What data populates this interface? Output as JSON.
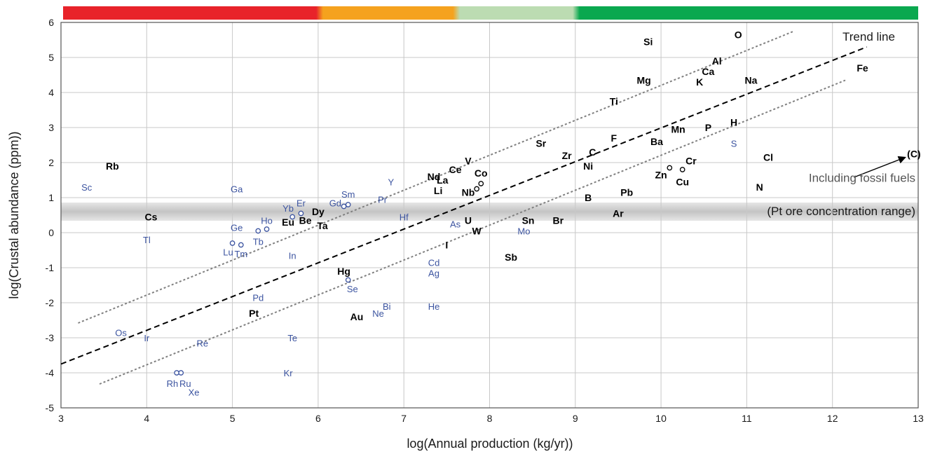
{
  "chart_data": {
    "type": "scatter",
    "title": "",
    "xlabel": "log(Annual production (kg/yr))",
    "ylabel": "log(Crustal abundance (ppm))",
    "xlim": [
      3,
      13
    ],
    "ylim": [
      -5,
      6
    ],
    "x_ticks": [
      "3",
      "4",
      "5",
      "6",
      "7",
      "8",
      "9",
      "10",
      "11",
      "12",
      "13"
    ],
    "y_ticks": [
      "-5",
      "-4",
      "-3",
      "-2",
      "-1",
      "0",
      "1",
      "2",
      "3",
      "4",
      "5",
      "6"
    ],
    "grid": true,
    "colors": {
      "major_label": "#000000",
      "minor_label": "#3c54a0",
      "grid": "#c8c8c8",
      "band": "#c4c4c4",
      "scale_red": "#e8232a",
      "scale_orange": "#f5a21e",
      "scale_lightgreen": "#bcdcb2",
      "scale_green": "#0aa84f",
      "dotted_lines": "#808080",
      "trend_line": "#000000"
    },
    "color_scale": {
      "segments": [
        {
          "from": 3,
          "to": 6,
          "color": "#e8232a"
        },
        {
          "from": 6,
          "to": 7.6,
          "color": "#f5a21e"
        },
        {
          "from": 7.6,
          "to": 9,
          "color": "#bcdcb2"
        },
        {
          "from": 9,
          "to": 13,
          "color": "#0aa84f"
        }
      ]
    },
    "band": {
      "y_range": [
        0.42,
        0.78
      ],
      "label": "(Pt ore concentration range)"
    },
    "trend_line": {
      "label": "Trend line",
      "points": [
        [
          3,
          -3.75
        ],
        [
          12.4,
          5.3
        ]
      ]
    },
    "dotted_lines": [
      {
        "points": [
          [
            3.2,
            -2.58
          ],
          [
            11.55,
            5.75
          ]
        ]
      },
      {
        "points": [
          [
            3.45,
            -4.32
          ],
          [
            12.15,
            4.35
          ]
        ]
      }
    ],
    "annotation": {
      "text": "Including fossil fuels",
      "arrow_from": [
        12.25,
        1.58
      ],
      "arrow_to": [
        12.85,
        2.15
      ]
    },
    "series": [
      {
        "name": "",
        "style": "major",
        "points": [
          {
            "label": "O",
            "x": 10.9,
            "y": 5.65
          },
          {
            "label": "Si",
            "x": 9.85,
            "y": 5.45
          },
          {
            "label": "Al",
            "x": 10.65,
            "y": 4.9
          },
          {
            "label": "Ca",
            "x": 10.55,
            "y": 4.6
          },
          {
            "label": "K",
            "x": 10.45,
            "y": 4.3
          },
          {
            "label": "Fe",
            "x": 12.35,
            "y": 4.7
          },
          {
            "label": "Mg",
            "x": 9.8,
            "y": 4.35
          },
          {
            "label": "Na",
            "x": 11.05,
            "y": 4.35
          },
          {
            "label": "Ti",
            "x": 9.45,
            "y": 3.75
          },
          {
            "label": "Mn",
            "x": 10.2,
            "y": 2.95
          },
          {
            "label": "P",
            "x": 10.55,
            "y": 3.0
          },
          {
            "label": "H",
            "x": 10.85,
            "y": 3.15
          },
          {
            "label": "F",
            "x": 9.45,
            "y": 2.7
          },
          {
            "label": "Ba",
            "x": 9.95,
            "y": 2.6
          },
          {
            "label": "Sr",
            "x": 8.6,
            "y": 2.55
          },
          {
            "label": "Zr",
            "x": 8.9,
            "y": 2.2
          },
          {
            "label": "C",
            "x": 9.2,
            "y": 2.3
          },
          {
            "label": "Ni",
            "x": 9.15,
            "y": 1.9
          },
          {
            "label": "Cr",
            "x": 10.35,
            "y": 2.05
          },
          {
            "label": "Zn",
            "x": 10.0,
            "y": 1.65
          },
          {
            "label": "Cu",
            "x": 10.25,
            "y": 1.45
          },
          {
            "label": "Cl",
            "x": 11.25,
            "y": 2.15
          },
          {
            "label": "(C)",
            "x": 12.95,
            "y": 2.25
          },
          {
            "label": "V",
            "x": 7.75,
            "y": 2.05
          },
          {
            "label": "Ce",
            "x": 7.6,
            "y": 1.8
          },
          {
            "label": "Co",
            "x": 7.9,
            "y": 1.7
          },
          {
            "label": "Nd",
            "x": 7.35,
            "y": 1.6
          },
          {
            "label": "La",
            "x": 7.45,
            "y": 1.5
          },
          {
            "label": "Li",
            "x": 7.4,
            "y": 1.2
          },
          {
            "label": "Nb",
            "x": 7.75,
            "y": 1.15
          },
          {
            "label": "N",
            "x": 11.15,
            "y": 1.3
          },
          {
            "label": "B",
            "x": 9.15,
            "y": 1.0
          },
          {
            "label": "Pb",
            "x": 9.6,
            "y": 1.15
          },
          {
            "label": "Rb",
            "x": 3.6,
            "y": 1.9
          },
          {
            "label": "Cs",
            "x": 4.05,
            "y": 0.45
          },
          {
            "label": "Dy",
            "x": 6.0,
            "y": 0.6
          },
          {
            "label": "Be",
            "x": 5.85,
            "y": 0.35
          },
          {
            "label": "Eu",
            "x": 5.65,
            "y": 0.3
          },
          {
            "label": "Ta",
            "x": 6.05,
            "y": 0.2
          },
          {
            "label": "U",
            "x": 7.75,
            "y": 0.35
          },
          {
            "label": "W",
            "x": 7.85,
            "y": 0.05
          },
          {
            "label": "Sn",
            "x": 8.45,
            "y": 0.35
          },
          {
            "label": "Br",
            "x": 8.8,
            "y": 0.35
          },
          {
            "label": "Ar",
            "x": 9.5,
            "y": 0.55
          },
          {
            "label": "I",
            "x": 7.5,
            "y": -0.35
          },
          {
            "label": "Sb",
            "x": 8.25,
            "y": -0.7
          },
          {
            "label": "Hg",
            "x": 6.3,
            "y": -1.1
          },
          {
            "label": "Pt",
            "x": 5.25,
            "y": -2.3
          },
          {
            "label": "Au",
            "x": 6.45,
            "y": -2.4
          }
        ]
      },
      {
        "name": "",
        "style": "minor",
        "points": [
          {
            "label": "Sc",
            "x": 3.3,
            "y": 1.3
          },
          {
            "label": "Ga",
            "x": 5.05,
            "y": 1.25
          },
          {
            "label": "Y",
            "x": 6.85,
            "y": 1.45
          },
          {
            "label": "Sm",
            "x": 6.35,
            "y": 1.1
          },
          {
            "label": "Gd",
            "x": 6.2,
            "y": 0.85
          },
          {
            "label": "Pr",
            "x": 6.75,
            "y": 0.95
          },
          {
            "label": "Er",
            "x": 5.8,
            "y": 0.85
          },
          {
            "label": "Yb",
            "x": 5.65,
            "y": 0.7
          },
          {
            "label": "Ho",
            "x": 5.4,
            "y": 0.35
          },
          {
            "label": "Hf",
            "x": 7.0,
            "y": 0.45
          },
          {
            "label": "As",
            "x": 7.6,
            "y": 0.25
          },
          {
            "label": "Mo",
            "x": 8.4,
            "y": 0.05
          },
          {
            "label": "Ge",
            "x": 5.05,
            "y": 0.15
          },
          {
            "label": "Tl",
            "x": 4.0,
            "y": -0.2
          },
          {
            "label": "Tb",
            "x": 5.3,
            "y": -0.25
          },
          {
            "label": "Lu",
            "x": 4.95,
            "y": -0.55
          },
          {
            "label": "Tm",
            "x": 5.1,
            "y": -0.6
          },
          {
            "label": "In",
            "x": 5.7,
            "y": -0.65
          },
          {
            "label": "S",
            "x": 10.85,
            "y": 2.55
          },
          {
            "label": "Cd",
            "x": 7.35,
            "y": -0.85
          },
          {
            "label": "Ag",
            "x": 7.35,
            "y": -1.15
          },
          {
            "label": "Se",
            "x": 6.4,
            "y": -1.6
          },
          {
            "label": "Pd",
            "x": 5.3,
            "y": -1.85
          },
          {
            "label": "Bi",
            "x": 6.8,
            "y": -2.1
          },
          {
            "label": "He",
            "x": 7.35,
            "y": -2.1
          },
          {
            "label": "Ne",
            "x": 6.7,
            "y": -2.3
          },
          {
            "label": "Os",
            "x": 3.7,
            "y": -2.85
          },
          {
            "label": "Ir",
            "x": 4.0,
            "y": -3.0
          },
          {
            "label": "Re",
            "x": 4.65,
            "y": -3.15
          },
          {
            "label": "Te",
            "x": 5.7,
            "y": -3.0
          },
          {
            "label": "Kr",
            "x": 5.65,
            "y": -4.0
          },
          {
            "label": "Rh",
            "x": 4.3,
            "y": -4.3
          },
          {
            "label": "Ru",
            "x": 4.45,
            "y": -4.3
          },
          {
            "label": "Xe",
            "x": 4.55,
            "y": -4.55
          }
        ]
      }
    ]
  }
}
